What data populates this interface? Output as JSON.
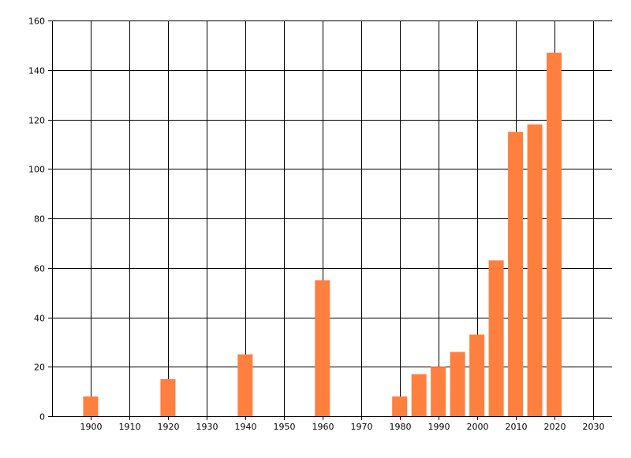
{
  "chart_data": {
    "type": "bar",
    "title": "",
    "xlabel": "",
    "ylabel": "",
    "xlim": [
      1890,
      2035
    ],
    "ylim": [
      0,
      160
    ],
    "x_ticks": [
      1900,
      1910,
      1920,
      1930,
      1940,
      1950,
      1960,
      1970,
      1980,
      1990,
      2000,
      2010,
      2020,
      2030
    ],
    "y_ticks": [
      0,
      20,
      40,
      60,
      80,
      100,
      120,
      140,
      160
    ],
    "grid": true,
    "legend": "none",
    "x": [
      1900,
      1920,
      1940,
      1960,
      1980,
      1985,
      1990,
      1995,
      2000,
      2005,
      2010,
      2015,
      2020
    ],
    "values": [
      8,
      15,
      25,
      55,
      8,
      17,
      20,
      26,
      33,
      63,
      115,
      118,
      147
    ],
    "bar_color": "#ff7f3f",
    "grid_color": "#000000"
  }
}
